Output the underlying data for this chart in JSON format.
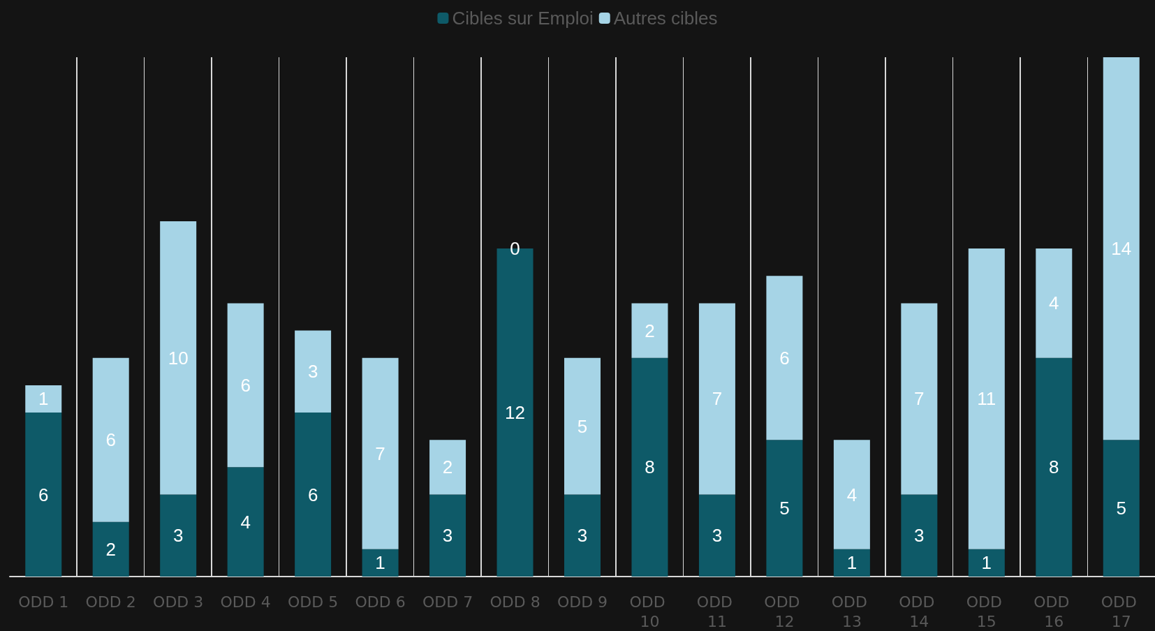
{
  "chart_data": {
    "type": "bar",
    "stacked": true,
    "data_labels": true,
    "legend": "top",
    "categories": [
      "ODD 1",
      "ODD 2",
      "ODD 3",
      "ODD 4",
      "ODD 5",
      "ODD 6",
      "ODD 7",
      "ODD 8",
      "ODD 9",
      "ODD 10",
      "ODD 11",
      "ODD 12",
      "ODD 13",
      "ODD 14",
      "ODD 15",
      "ODD 16",
      "ODD 17"
    ],
    "series": [
      {
        "name": "Cibles sur Emploi",
        "color": "#0e5a68",
        "values": [
          6,
          2,
          3,
          4,
          6,
          1,
          3,
          12,
          3,
          8,
          3,
          5,
          1,
          3,
          1,
          8,
          5
        ]
      },
      {
        "name": "Autres cibles",
        "color": "#a6d4e6",
        "values": [
          1,
          6,
          10,
          6,
          3,
          7,
          2,
          0,
          5,
          2,
          7,
          6,
          4,
          7,
          11,
          4,
          14
        ]
      }
    ]
  }
}
